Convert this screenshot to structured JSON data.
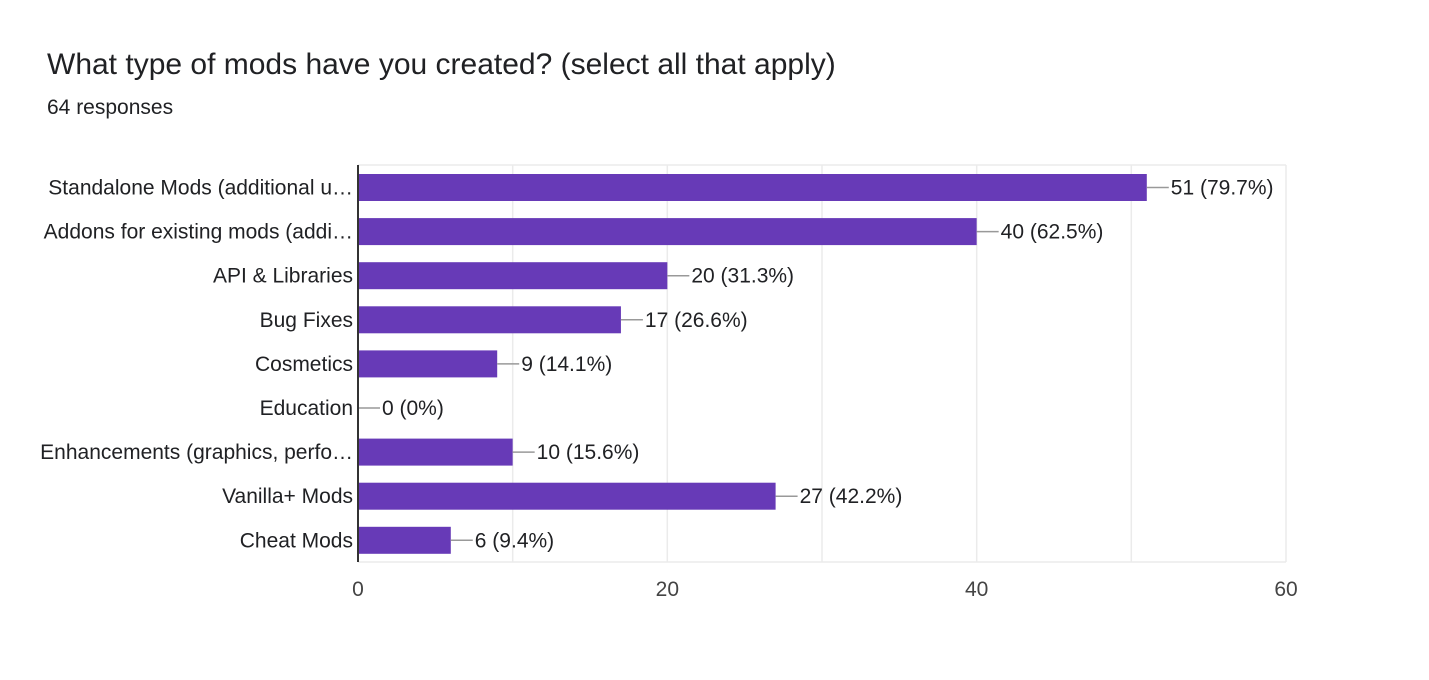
{
  "header": {
    "title": "What type of mods have you created? (select all that apply)",
    "subtitle": "64 responses"
  },
  "chart_data": {
    "type": "bar",
    "orientation": "horizontal",
    "categories": [
      "Standalone Mods (additional u…",
      "Addons for existing mods (addi…",
      "API & Libraries",
      "Bug Fixes",
      "Cosmetics",
      "Education",
      "Enhancements (graphics, perfo…",
      "Vanilla+ Mods",
      "Cheat Mods"
    ],
    "values": [
      51,
      40,
      20,
      17,
      9,
      0,
      10,
      27,
      6
    ],
    "value_labels": [
      "51 (79.7%)",
      "40 (62.5%)",
      "20 (31.3%)",
      "17 (26.6%)",
      "9 (14.1%)",
      "0 (0%)",
      "10 (15.6%)",
      "27 (42.2%)",
      "6 (9.4%)"
    ],
    "xlim": [
      0,
      60
    ],
    "xticks": [
      0,
      20,
      40,
      60
    ],
    "grid": true,
    "colors": {
      "bar": "#673ab7",
      "grid": "#ebebeb",
      "axis": "#333333",
      "leader": "#999999"
    }
  }
}
